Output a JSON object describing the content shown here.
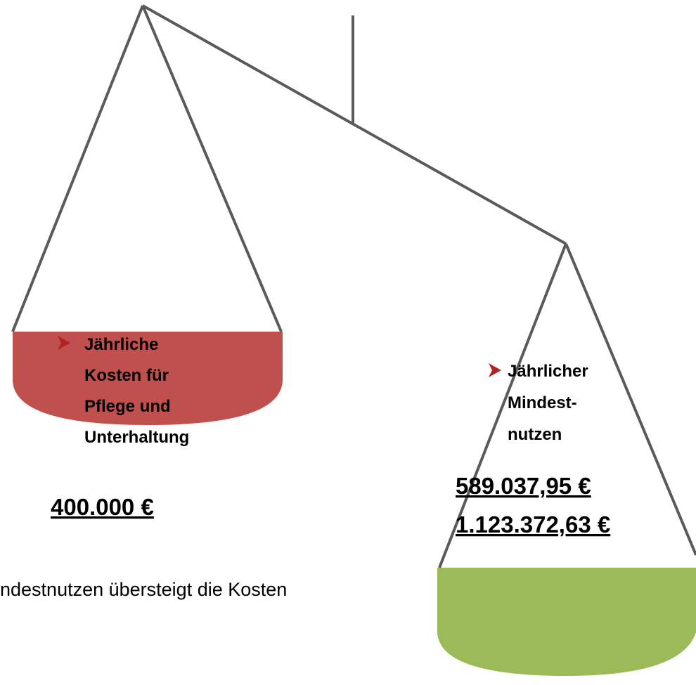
{
  "left_pan": {
    "label_lines": [
      "Jährliche",
      "Kosten für",
      "Pflege und",
      "Unterhaltung"
    ],
    "value": "400.000 €"
  },
  "right_pan": {
    "label_lines": [
      "Jährlicher",
      "Mindest-",
      "nutzen"
    ],
    "values": [
      "589.037,95 €",
      "1.123.372,63 €"
    ]
  },
  "footer": "ndestnutzen übersteigt die Kosten"
}
